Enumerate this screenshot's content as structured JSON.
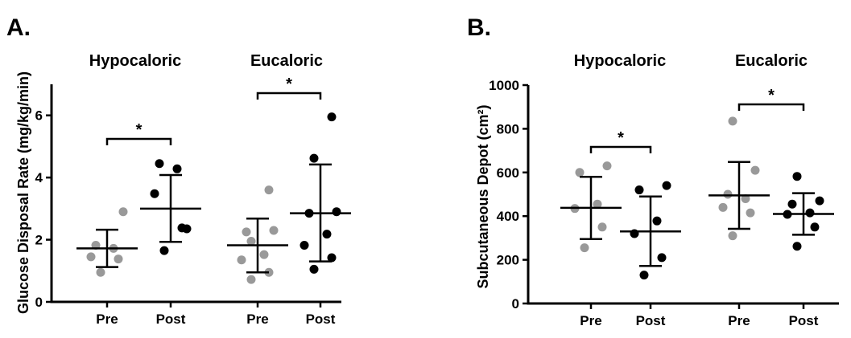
{
  "chart_data": [
    {
      "panel": "A.",
      "type": "scatter",
      "ylabel": "Glucose Disposal Rate (mg/kg/min)",
      "ylim": [
        0,
        7
      ],
      "yticks": [
        0,
        2,
        4,
        6
      ],
      "groups": [
        {
          "title": "Hypocaloric",
          "significance": "*",
          "categories": [
            {
              "label": "Pre",
              "color": "#999999",
              "mean": 1.72,
              "sd_low": 1.12,
              "sd_high": 2.32,
              "points": [
                0.95,
                1.38,
                1.45,
                1.72,
                1.82,
                2.9
              ]
            },
            {
              "label": "Post",
              "color": "#000000",
              "mean": 3.0,
              "sd_low": 1.93,
              "sd_high": 4.08,
              "points": [
                1.65,
                2.38,
                3.48,
                4.28,
                4.45,
                2.35
              ]
            }
          ]
        },
        {
          "title": "Eucaloric",
          "significance": "*",
          "categories": [
            {
              "label": "Pre",
              "color": "#999999",
              "mean": 1.82,
              "sd_low": 0.95,
              "sd_high": 2.68,
              "points": [
                0.72,
                0.95,
                1.35,
                1.52,
                2.25,
                2.3,
                1.95,
                3.6
              ]
            },
            {
              "label": "Post",
              "color": "#000000",
              "mean": 2.85,
              "sd_low": 1.3,
              "sd_high": 4.42,
              "points": [
                1.05,
                1.42,
                1.82,
                2.18,
                2.85,
                2.9,
                4.62,
                5.95
              ]
            }
          ]
        }
      ]
    },
    {
      "panel": "B.",
      "type": "scatter",
      "ylabel": "Subcutaneous Depot (cm²)",
      "ylim": [
        0,
        1000
      ],
      "yticks": [
        0,
        200,
        400,
        600,
        800,
        1000
      ],
      "groups": [
        {
          "title": "Hypocaloric",
          "significance": "*",
          "categories": [
            {
              "label": "Pre",
              "color": "#999999",
              "mean": 438,
              "sd_low": 295,
              "sd_high": 580,
              "points": [
                255,
                350,
                435,
                455,
                600,
                630
              ]
            },
            {
              "label": "Post",
              "color": "#000000",
              "mean": 330,
              "sd_low": 172,
              "sd_high": 490,
              "points": [
                130,
                210,
                320,
                378,
                520,
                540
              ]
            }
          ]
        },
        {
          "title": "Eucaloric",
          "significance": "*",
          "categories": [
            {
              "label": "Pre",
              "color": "#999999",
              "mean": 495,
              "sd_low": 342,
              "sd_high": 648,
              "points": [
                310,
                415,
                440,
                480,
                500,
                610,
                835
              ]
            },
            {
              "label": "Post",
              "color": "#000000",
              "mean": 410,
              "sd_low": 315,
              "sd_high": 505,
              "points": [
                262,
                350,
                408,
                415,
                455,
                470,
                582
              ]
            }
          ]
        }
      ]
    }
  ]
}
